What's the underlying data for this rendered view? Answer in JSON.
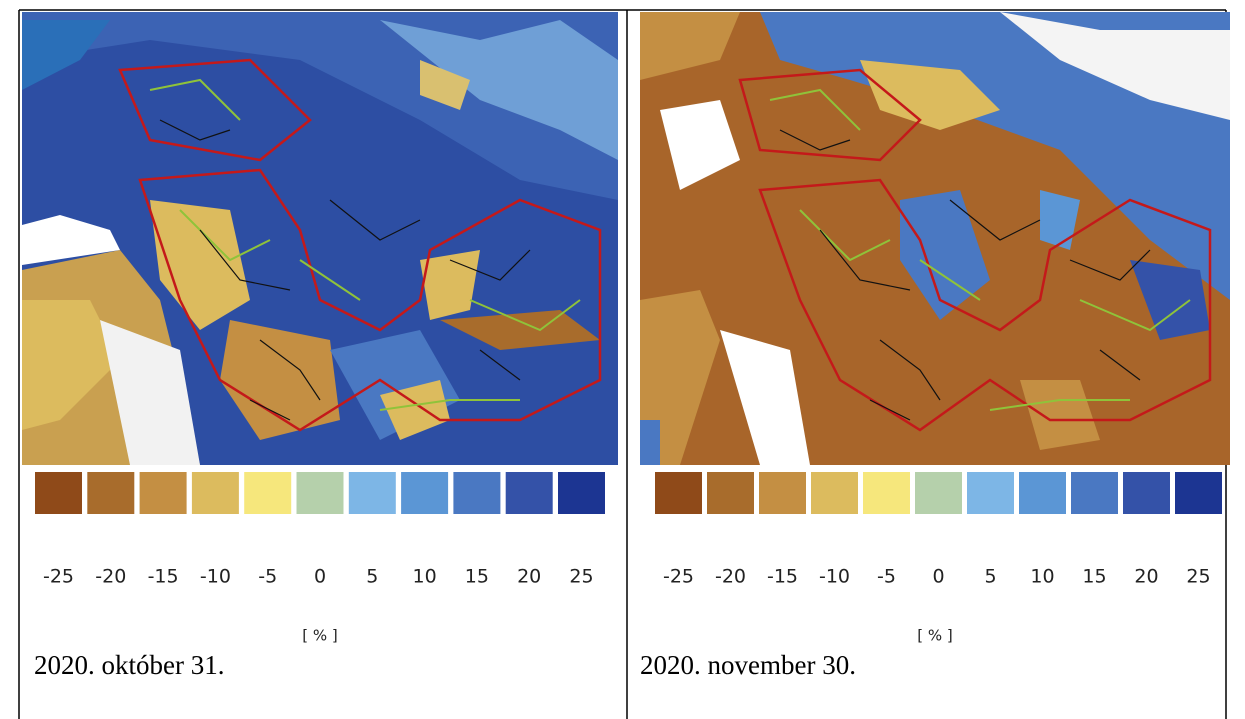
{
  "panels": [
    {
      "legend": {
        "colors": [
          "#8f4a19",
          "#a86c2c",
          "#c48f43",
          "#dcbb5e",
          "#f6e77c",
          "#b5d0ab",
          "#7db6e6",
          "#5b96d5",
          "#4a78c2",
          "#3452a8",
          "#1c3592"
        ],
        "labels": [
          "-25",
          "-20",
          "-15",
          "-10",
          "-5",
          "0",
          "5",
          "10",
          "15",
          "20",
          "25"
        ]
      },
      "unit": "[ % ]",
      "caption": "2020. október 31."
    },
    {
      "legend": {
        "colors": [
          "#8f4a19",
          "#a86c2c",
          "#c48f43",
          "#dcbb5e",
          "#f6e77c",
          "#b5d0ab",
          "#7db6e6",
          "#5b96d5",
          "#4a78c2",
          "#3452a8",
          "#1c3592"
        ],
        "labels": [
          "-25",
          "-20",
          "-15",
          "-10",
          "-5",
          "0",
          "5",
          "10",
          "15",
          "20",
          "25"
        ]
      },
      "unit": "[ % ]",
      "caption": "2020. november 30."
    }
  ]
}
